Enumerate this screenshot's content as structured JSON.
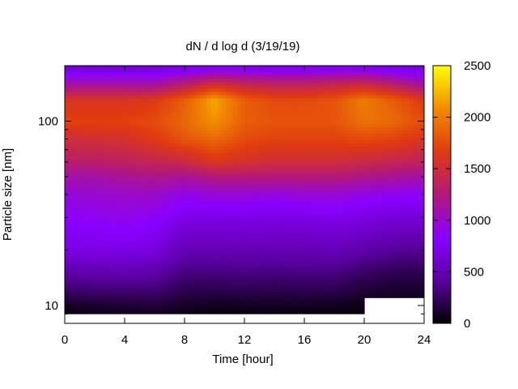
{
  "chart_data": {
    "type": "heatmap",
    "title": "dN / d log d (3/19/19)",
    "xlabel": "Time [hour]",
    "ylabel": "Particle size [nm]",
    "xlim": [
      0,
      24
    ],
    "xticks": [
      "0",
      "4",
      "8",
      "12",
      "16",
      "20",
      "24"
    ],
    "y_scale": "log",
    "ylim": [
      8,
      200
    ],
    "yticks": [
      "10",
      "100"
    ],
    "colorbar": {
      "range": [
        0,
        2500
      ],
      "ticks": [
        "0",
        "500",
        "1000",
        "1500",
        "2000",
        "2500"
      ],
      "colormap": [
        "#000000",
        "#5a00a0",
        "#8a00ff",
        "#b2197a",
        "#e03a10",
        "#f28c00",
        "#ffff00"
      ]
    },
    "times": [
      0,
      2,
      4,
      6,
      8,
      10,
      12,
      14,
      16,
      18,
      20,
      22,
      24
    ],
    "sizes": [
      8,
      10,
      15,
      20,
      30,
      40,
      50,
      60,
      80,
      100,
      130,
      160,
      200
    ],
    "values": [
      [
        0,
        0,
        0,
        0,
        0,
        0,
        0,
        0,
        0,
        0,
        0,
        0,
        0
      ],
      [
        100,
        120,
        130,
        150,
        100,
        80,
        90,
        90,
        90,
        80,
        50,
        40,
        30
      ],
      [
        450,
        470,
        480,
        450,
        320,
        320,
        330,
        320,
        330,
        330,
        250,
        200,
        200
      ],
      [
        700,
        720,
        720,
        680,
        500,
        500,
        500,
        500,
        500,
        520,
        450,
        400,
        380
      ],
      [
        850,
        870,
        900,
        850,
        720,
        720,
        720,
        710,
        720,
        740,
        700,
        650,
        650
      ],
      [
        950,
        980,
        1000,
        1000,
        900,
        950,
        950,
        920,
        950,
        960,
        900,
        870,
        850
      ],
      [
        1100,
        1100,
        1150,
        1200,
        1150,
        1250,
        1250,
        1250,
        1250,
        1250,
        1200,
        1150,
        1100
      ],
      [
        1300,
        1320,
        1350,
        1400,
        1450,
        1600,
        1550,
        1500,
        1500,
        1500,
        1450,
        1400,
        1350
      ],
      [
        1500,
        1520,
        1550,
        1650,
        1800,
        1900,
        1750,
        1700,
        1700,
        1700,
        1750,
        1700,
        1600
      ],
      [
        1700,
        1700,
        1700,
        1750,
        1900,
        2100,
        1850,
        1800,
        1800,
        1800,
        1950,
        1900,
        1750
      ],
      [
        1600,
        1600,
        1600,
        1650,
        1850,
        2200,
        1850,
        1750,
        1750,
        1800,
        2000,
        1850,
        1650
      ],
      [
        1100,
        1100,
        1100,
        1100,
        1300,
        1500,
        1400,
        1350,
        1350,
        1400,
        1450,
        1300,
        1100
      ],
      [
        600,
        600,
        600,
        600,
        650,
        700,
        700,
        680,
        680,
        700,
        700,
        650,
        600
      ]
    ],
    "missing_low_sizes_after_hour": 20
  }
}
